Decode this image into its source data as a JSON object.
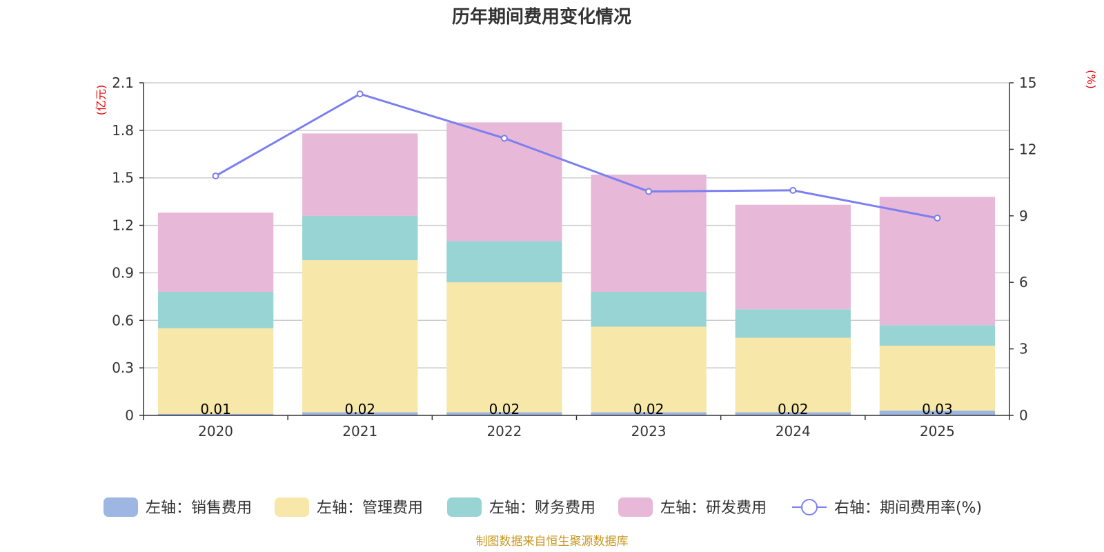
{
  "chart_data": {
    "type": "bar",
    "stacked": true,
    "title": "历年期间费用变化情况",
    "categories": [
      "2020",
      "2021",
      "2022",
      "2023",
      "2024",
      "2025"
    ],
    "series": [
      {
        "name": "左轴：销售费用",
        "axis": "left",
        "color": "#9db6e2",
        "values": [
          0.01,
          0.02,
          0.02,
          0.02,
          0.02,
          0.03
        ]
      },
      {
        "name": "左轴：管理费用",
        "axis": "left",
        "color": "#f7e7a9",
        "values": [
          0.54,
          0.96,
          0.82,
          0.54,
          0.47,
          0.41
        ]
      },
      {
        "name": "左轴：财务费用",
        "axis": "left",
        "color": "#99d4d4",
        "values": [
          0.23,
          0.28,
          0.26,
          0.22,
          0.18,
          0.13
        ]
      },
      {
        "name": "左轴：研发费用",
        "axis": "left",
        "color": "#e7b8d8",
        "values": [
          0.5,
          0.52,
          0.75,
          0.74,
          0.66,
          0.81
        ]
      }
    ],
    "line": {
      "name": "右轴：期间费用率(%)",
      "axis": "right",
      "color": "#7b7ff0",
      "values": [
        10.8,
        14.5,
        12.5,
        10.1,
        10.15,
        8.9
      ]
    },
    "data_labels": [
      "0.01",
      "0.02",
      "0.02",
      "0.02",
      "0.02",
      "0.03"
    ],
    "left_axis": {
      "unit": "(亿元)",
      "min": 0,
      "max": 2.1,
      "ticks": [
        "0",
        "0.3",
        "0.6",
        "0.9",
        "1.2",
        "1.5",
        "1.8",
        "2.1"
      ]
    },
    "right_axis": {
      "unit": "(%)",
      "min": 0,
      "max": 15,
      "ticks": [
        "0",
        "3",
        "6",
        "9",
        "12",
        "15"
      ]
    },
    "unit_color": "#e60000",
    "grid": true,
    "legend_position": "bottom"
  },
  "source": {
    "text": "制图数据来自恒生聚源数据库",
    "color": "#c8961e"
  }
}
